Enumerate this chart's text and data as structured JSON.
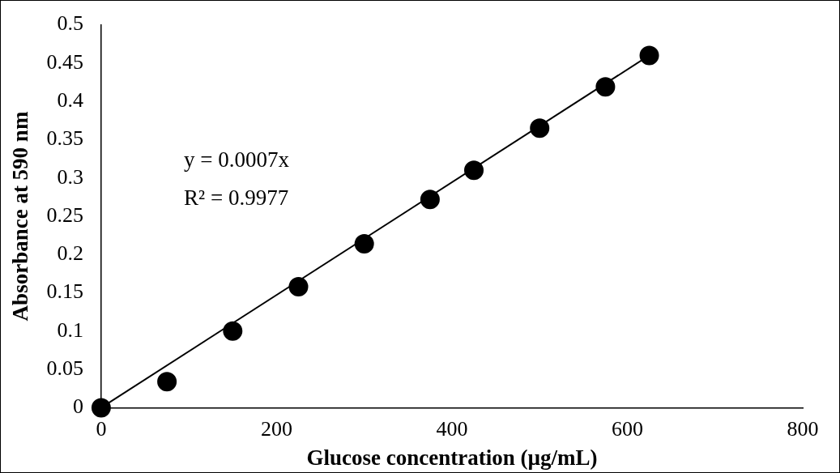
{
  "chart_data": {
    "type": "scatter",
    "xlabel": "Glucose concentration (µg/mL)",
    "ylabel": "Absorbance at 590 nm",
    "xlim": [
      0,
      800
    ],
    "xticks": [
      0,
      200,
      400,
      600,
      800
    ],
    "ylim": [
      0,
      0.5
    ],
    "yticks": [
      0,
      0.05,
      0.1,
      0.15,
      0.2,
      0.25,
      0.3,
      0.35,
      0.4,
      0.45,
      0.5
    ],
    "grid": false,
    "legend": false,
    "marker": "circle",
    "series": [
      {
        "color": "#000000",
        "x": [
          0,
          75,
          150,
          225,
          300,
          375,
          425,
          500,
          575,
          625
        ],
        "values": [
          0,
          0.034,
          0.1,
          0.158,
          0.214,
          0.272,
          0.31,
          0.365,
          0.419,
          0.46
        ]
      },
      {
        "type": "line",
        "color": "#000000",
        "x": [
          0,
          625
        ],
        "values": [
          0,
          0.46
        ],
        "marker": "none",
        "line_style": "solid"
      }
    ],
    "annotations": [
      "y = 0.0007x",
      "R² = 0.9977"
    ]
  }
}
